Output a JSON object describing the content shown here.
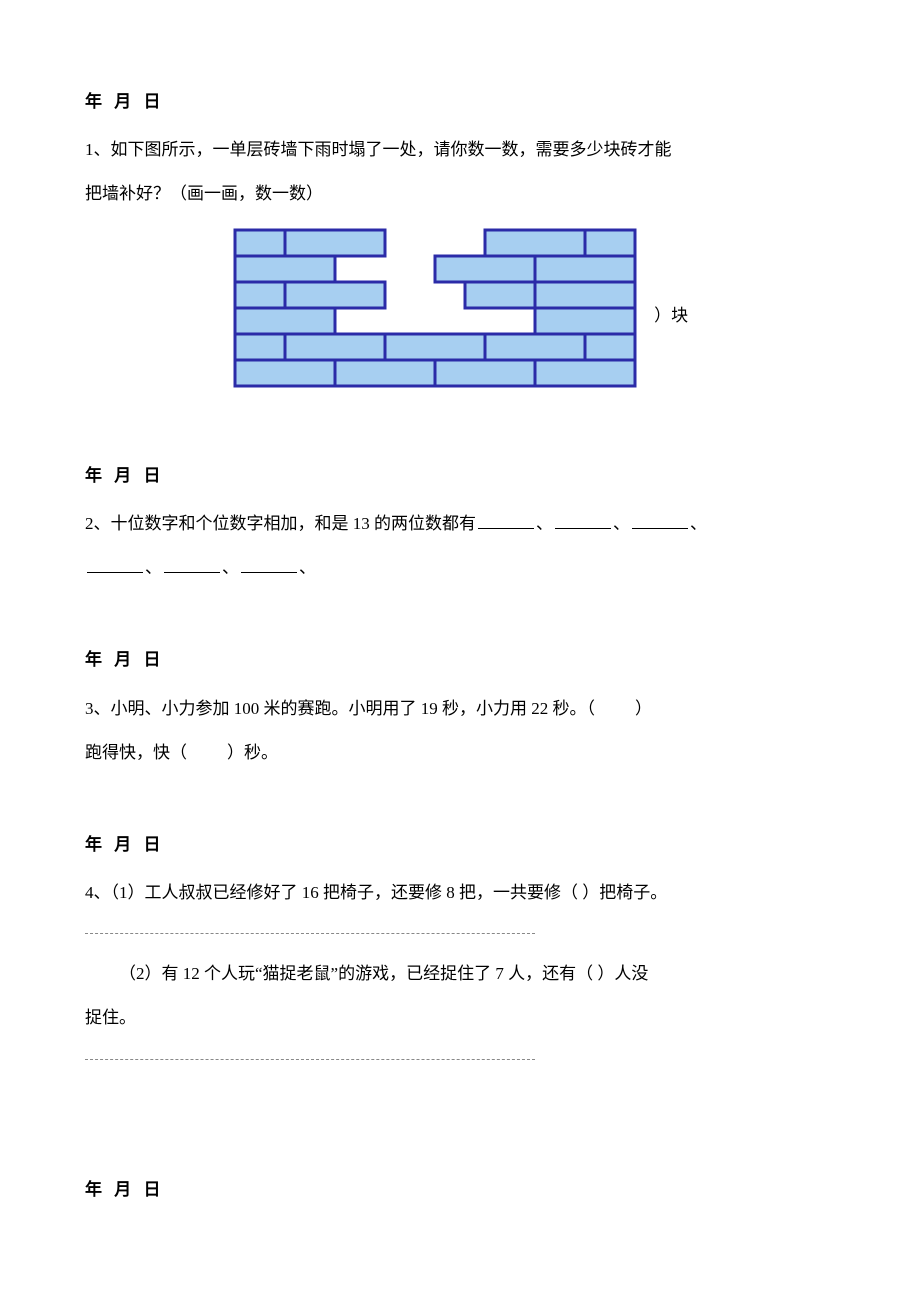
{
  "date_header": "年  月    日",
  "q1": {
    "line1": "1、如下图所示，一单层砖墙下雨时塌了一处，请你数一数，需要多少块砖才能",
    "line2": "把墙补好？（画一画，数一数）",
    "annotation": "）块"
  },
  "q2": {
    "prefix": "2、十位数字和个位数字相加，和是 13 的两位数都有",
    "sep": "、"
  },
  "q3": {
    "line1a": "3、小明、小力参加 100 米的赛跑。小明用了 19 秒，小力用 22 秒。（",
    "line1b": "）",
    "line2a": "跑得快，快（",
    "line2b": "）秒。"
  },
  "q4": {
    "part1": "4、（1）工人叔叔已经修好了 16 把椅子，还要修 8 把，一共要修（   ）把椅子。",
    "part2a": "（2）有 12 个人玩“猫捉老鼠”的游戏，已经捉住了 7 人，还有（   ）人没",
    "part2b": "捉住。"
  },
  "brick": {
    "bw": 100,
    "hw": 50,
    "h": 26,
    "color": "#a7cff1",
    "stroke": "#2b2ba8"
  }
}
